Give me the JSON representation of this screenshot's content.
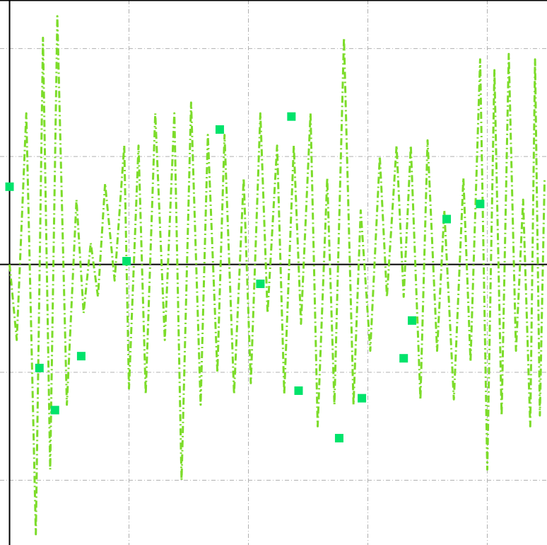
{
  "chart_data": {
    "type": "line",
    "title": "",
    "xlabel": "",
    "ylabel": "",
    "xlim": [
      -0.08,
      4.5
    ],
    "ylim": [
      -2.6,
      2.45
    ],
    "xticks": [
      1,
      2,
      3,
      4
    ],
    "yticks": [
      -2,
      -1,
      1,
      2
    ],
    "grid": true,
    "series": [
      {
        "style": "dash-dot line",
        "color": "#7cdc2a",
        "x": [
          0.0,
          0.06,
          0.14,
          0.22,
          0.28,
          0.34,
          0.4,
          0.48,
          0.56,
          0.62,
          0.68,
          0.74,
          0.8,
          0.88,
          0.96,
          1.0,
          1.08,
          1.14,
          1.22,
          1.3,
          1.38,
          1.44,
          1.52,
          1.6,
          1.66,
          1.74,
          1.8,
          1.88,
          1.96,
          2.02,
          2.1,
          2.16,
          2.24,
          2.3,
          2.38,
          2.44,
          2.52,
          2.58,
          2.66,
          2.72,
          2.8,
          2.88,
          2.94,
          3.02,
          3.1,
          3.16,
          3.24,
          3.3,
          3.36,
          3.44,
          3.5,
          3.58,
          3.64,
          3.72,
          3.8,
          3.86,
          3.94,
          4.0,
          4.06,
          4.12,
          4.18,
          4.24,
          4.3,
          4.36,
          4.4,
          4.44,
          4.48
        ],
        "y": [
          0.0,
          -0.7,
          1.4,
          -2.5,
          2.1,
          -1.9,
          2.3,
          -1.3,
          0.6,
          -0.45,
          0.2,
          -0.3,
          0.75,
          -0.15,
          1.1,
          -1.15,
          1.1,
          -1.2,
          1.4,
          -0.7,
          1.4,
          -2.0,
          1.5,
          -1.3,
          1.2,
          -1.0,
          1.2,
          -1.2,
          0.8,
          -1.1,
          1.4,
          -0.45,
          1.1,
          -1.2,
          1.1,
          -0.55,
          1.4,
          -1.5,
          0.8,
          -1.3,
          2.1,
          -1.3,
          0.5,
          -0.8,
          1.0,
          -0.3,
          1.1,
          -0.3,
          1.1,
          -1.25,
          1.15,
          -0.8,
          0.5,
          -1.25,
          0.8,
          -0.9,
          1.9,
          -1.9,
          1.8,
          -1.4,
          1.95,
          -0.8,
          0.6,
          -1.5,
          1.9,
          -1.4,
          0.8
        ]
      },
      {
        "style": "square markers",
        "color": "#00e36b",
        "x": [
          0.0,
          0.25,
          0.38,
          0.6,
          0.98,
          1.76,
          2.1,
          2.36,
          2.42,
          2.76,
          2.95,
          3.3,
          3.37,
          3.66,
          3.94
        ],
        "y": [
          0.72,
          -0.96,
          -1.35,
          -0.85,
          0.03,
          1.25,
          -0.18,
          1.37,
          -1.17,
          -1.61,
          -1.24,
          -0.87,
          -0.52,
          0.42,
          0.56
        ]
      }
    ]
  }
}
